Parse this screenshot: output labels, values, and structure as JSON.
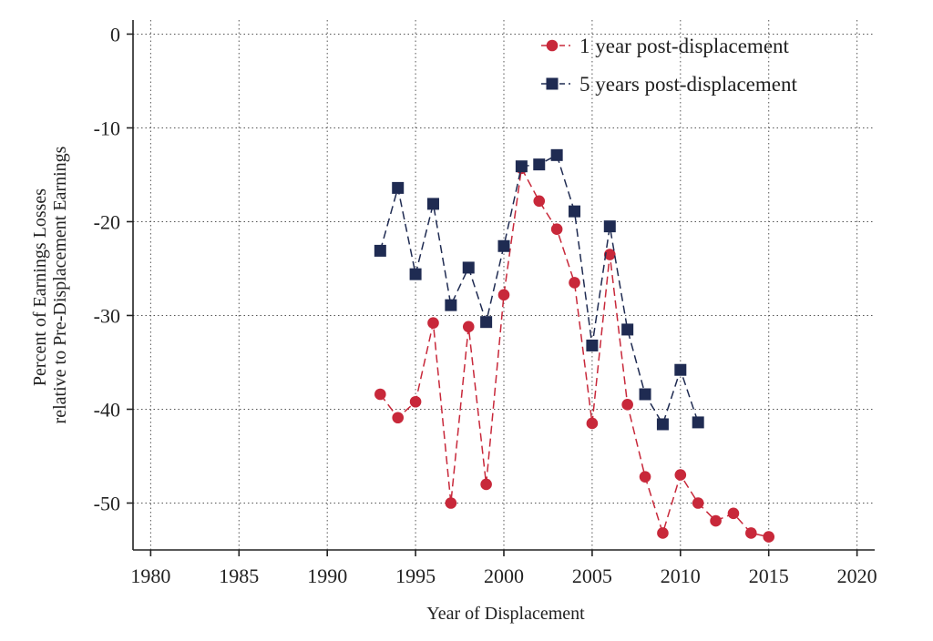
{
  "chart_data": {
    "type": "line",
    "xlabel": "Year of Displacement",
    "ylabel_lines": [
      "Percent of Earnings Losses",
      "relative to Pre-Displacement Earnings"
    ],
    "xlim": [
      1979,
      2021
    ],
    "ylim": [
      -55,
      1.5
    ],
    "xticks": [
      1980,
      1985,
      1990,
      1995,
      2000,
      2005,
      2010,
      2015,
      2020
    ],
    "yticks": [
      0,
      -10,
      -20,
      -30,
      -40,
      -50
    ],
    "grid": true,
    "legend_position": "top-right",
    "series": [
      {
        "name": "1 year post-displacement",
        "color": "#c8283a",
        "marker": "circle",
        "x": [
          1993,
          1994,
          1995,
          1996,
          1997,
          1998,
          1999,
          2000,
          2001,
          2002,
          2003,
          2004,
          2005,
          2006,
          2007,
          2008,
          2009,
          2010,
          2011,
          2012,
          2013,
          2014,
          2015
        ],
        "y": [
          -38.4,
          -40.9,
          -39.2,
          -30.8,
          -50.0,
          -31.2,
          -48.0,
          -27.8,
          -14.3,
          -17.8,
          -20.8,
          -26.5,
          -41.5,
          -23.5,
          -39.5,
          -47.2,
          -53.2,
          -47.0,
          -50.0,
          -51.9,
          -51.1,
          -53.2,
          -53.6
        ]
      },
      {
        "name": "5 years post-displacement",
        "color": "#1f2b52",
        "marker": "square",
        "x": [
          1993,
          1994,
          1995,
          1996,
          1997,
          1998,
          1999,
          2000,
          2001,
          2002,
          2003,
          2004,
          2005,
          2006,
          2007,
          2008,
          2009,
          2010,
          2011
        ],
        "y": [
          -23.1,
          -16.4,
          -25.6,
          -18.1,
          -28.9,
          -24.9,
          -30.7,
          -22.6,
          -14.1,
          -13.9,
          -12.9,
          -18.9,
          -33.2,
          -20.5,
          -31.5,
          -38.4,
          -41.6,
          -35.8,
          -41.4
        ]
      }
    ]
  }
}
